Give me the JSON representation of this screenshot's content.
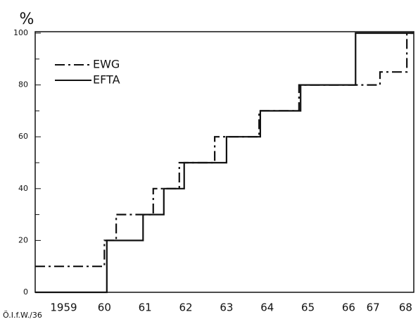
{
  "chart_data": {
    "type": "line",
    "step": "post",
    "y_label": "%",
    "source": "Ö.I.f.W./36",
    "xlim": [
      1958.3,
      1967.6
    ],
    "xticks": [
      {
        "value": 1959,
        "label": "1959"
      },
      {
        "value": 1960,
        "label": "60"
      },
      {
        "value": 1961,
        "label": "61"
      },
      {
        "value": 1962,
        "label": "62"
      },
      {
        "value": 1963,
        "label": "63"
      },
      {
        "value": 1964,
        "label": "64"
      },
      {
        "value": 1965,
        "label": "65"
      },
      {
        "value": 1966,
        "label": "66"
      },
      {
        "value": 1966.6,
        "label": "67"
      },
      {
        "value": 1967.4,
        "label": "68"
      }
    ],
    "ylim": [
      0,
      100
    ],
    "yticks": [
      0,
      20,
      40,
      60,
      80,
      100
    ],
    "yminorticks": [
      10,
      30,
      50,
      70,
      90
    ],
    "legend": "upper left",
    "series": [
      {
        "name": "EWG",
        "color": "#111111",
        "dash": "14 5 3 5",
        "x": [
          1958.3,
          1960.0,
          1960.29,
          1961.2,
          1961.84,
          1962.71,
          1963.8,
          1964.78,
          1966.77,
          1967.43,
          1967.6
        ],
        "values": [
          10,
          20,
          30,
          40,
          50,
          60,
          70,
          80,
          85,
          100,
          100
        ]
      },
      {
        "name": "EFTA",
        "color": "#111111",
        "dash": "none",
        "x": [
          1958.3,
          1960.06,
          1960.95,
          1961.46,
          1961.96,
          1963.0,
          1963.83,
          1964.82,
          1966.17,
          1967.6
        ],
        "values": [
          0,
          20,
          30,
          40,
          50,
          60,
          70,
          80,
          100,
          100
        ]
      }
    ]
  }
}
